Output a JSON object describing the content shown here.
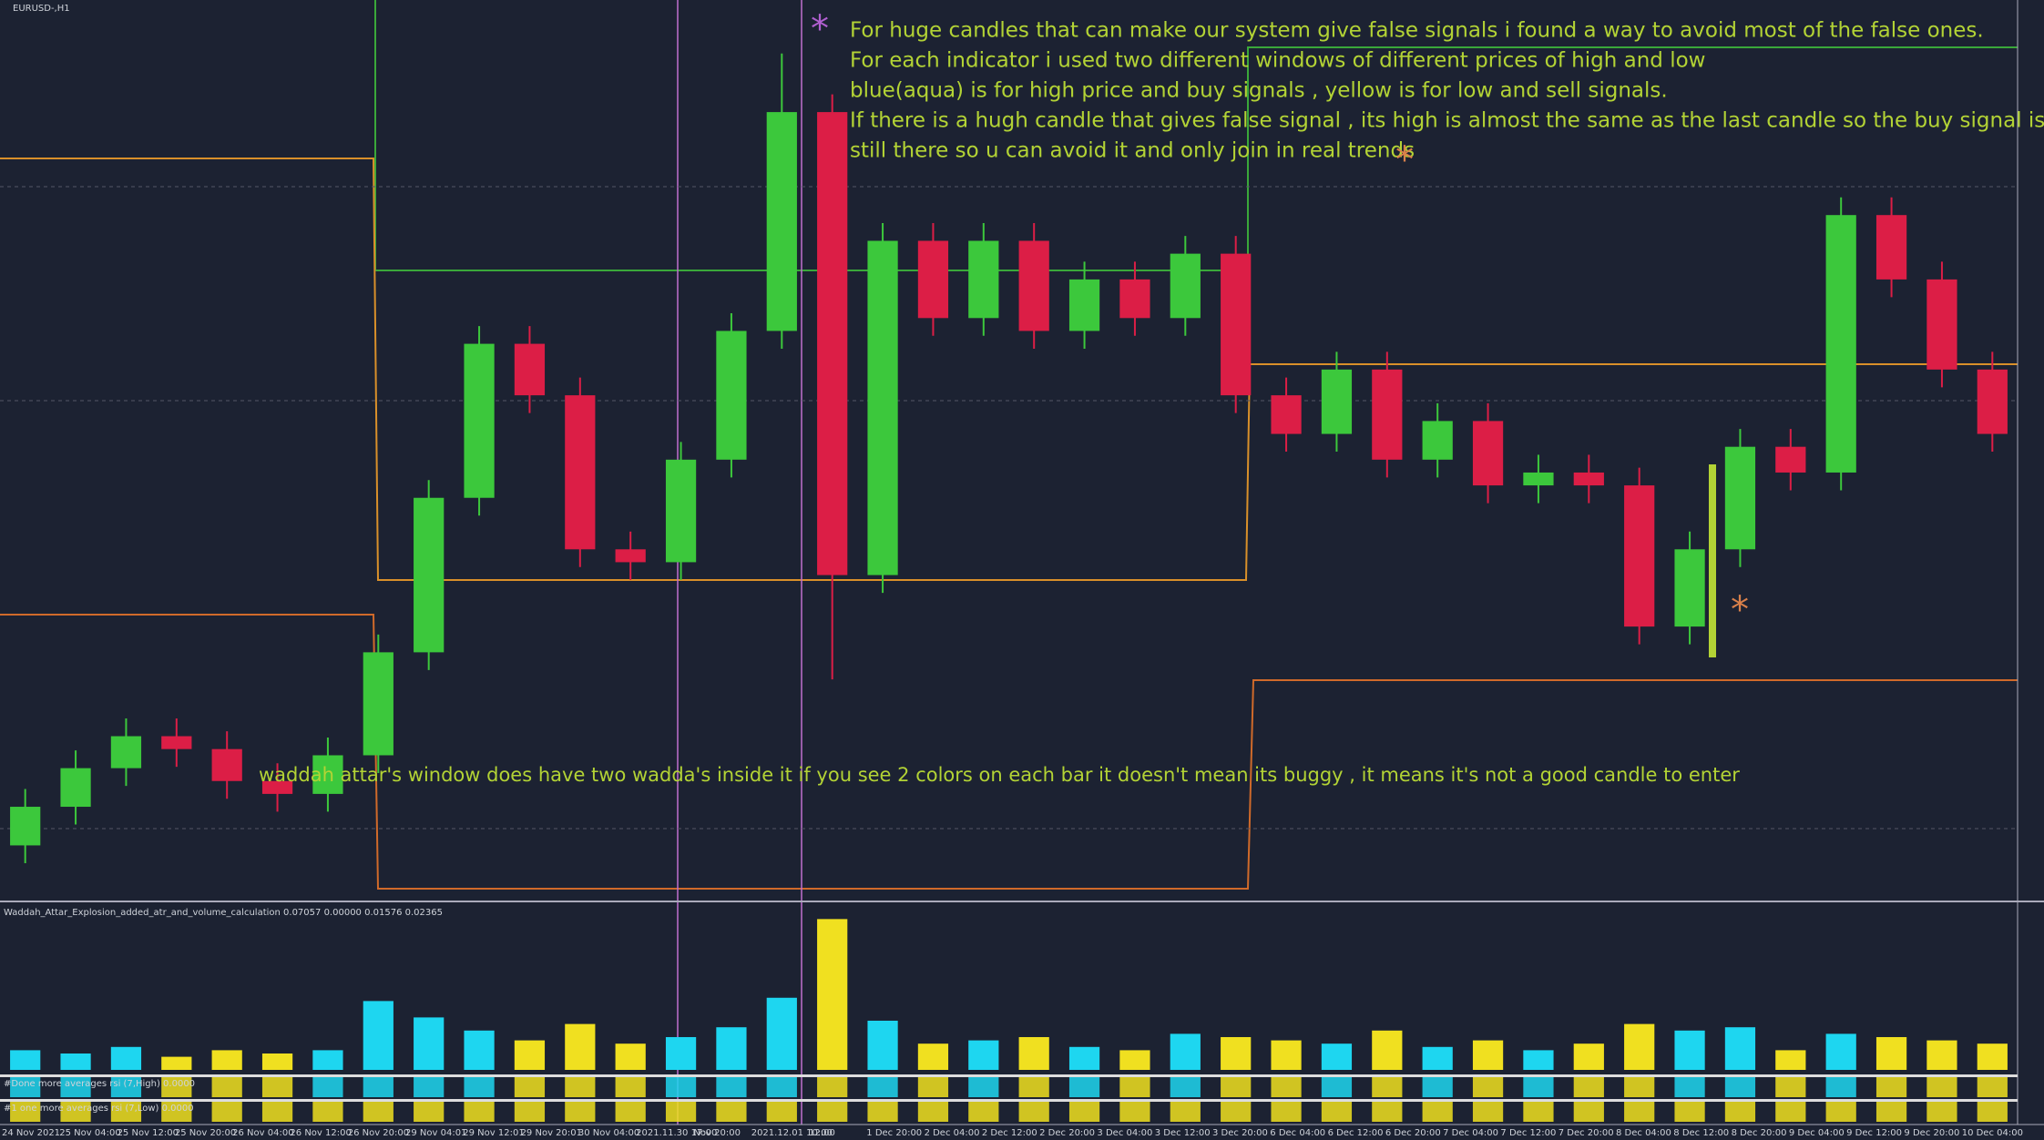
{
  "symbol_label": "EURUSD-,H1",
  "annotations": {
    "asterisk_1": "*",
    "note_lines": [
      "For huge candles that can make our system give false signals i found a way to avoid most of the false ones.",
      "For each indicator i  used two different windows of different prices of high and low",
      "blue(aqua) is for high price and buy signals , yellow is for low and sell signals.",
      "If there is a hugh candle that gives false signal , its high is almost the same as the last candle so the buy signal is",
      "still there so u can avoid it and only join in real trends"
    ],
    "asterisk_2": "*",
    "asterisk_3": "*",
    "waddah_note": "waddah attar's window does have two wadda's inside it if you see 2 colors on each bar it doesn't mean its buggy , it means it's not a good candle to enter"
  },
  "indicator_labels": [
    "Waddah_Attar_Explosion_added_atr_and_volume_calculation 0.07057 0.00000 0.01576 0.02365",
    "#Done more averages rsi (7,High) 0.0000",
    "#1 one more averages rsi (7,Low) 0.0000"
  ],
  "time_labels": [
    "24 Nov 2021",
    "25 Nov 04:00",
    "25 Nov 12:00",
    "25 Nov 20:00",
    "26 Nov 04:00",
    "26 Nov 12:00",
    "26 Nov 20:00",
    "29 Nov 04:01",
    "29 Nov 12:01",
    "29 Nov 20:01",
    "30 Nov 04:00",
    "2021.11.30 17:00",
    "Nov 20:00",
    "2021.12.01 10:00",
    "12:00",
    "1 Dec 20:00",
    "2 Dec 04:00",
    "2 Dec 12:00",
    "2 Dec 20:00",
    "3 Dec 04:00",
    "3 Dec 12:00",
    "3 Dec 20:00",
    "6 Dec 04:00",
    "6 Dec 12:00",
    "6 Dec 20:00",
    "7 Dec 04:00",
    "7 Dec 12:00",
    "7 Dec 20:00",
    "8 Dec 04:00",
    "8 Dec 12:00",
    "8 Dec 20:00",
    "9 Dec 04:00",
    "9 Dec 12:00",
    "9 Dec 20:00",
    "10 Dec 04:00"
  ],
  "price_chart": {
    "type": "candlestick",
    "up_color": "#3cc83c",
    "down_color": "#dc1e46",
    "ylim": [
      1.1185,
      1.1385
    ],
    "open": [
      1.11966,
      1.12053,
      1.1214,
      1.12212,
      1.12183,
      1.12111,
      1.12082,
      1.12169,
      1.12401,
      1.12749,
      1.13096,
      1.1298,
      1.12633,
      1.12604,
      1.12835,
      1.13125,
      1.13618,
      1.12575,
      1.13328,
      1.13154,
      1.13328,
      1.13125,
      1.13241,
      1.13154,
      1.13299,
      1.1298,
      1.12893,
      1.13038,
      1.12835,
      1.12922,
      1.12777,
      1.12806,
      1.12777,
      1.12459,
      1.12633,
      1.12864,
      1.12806,
      1.13386,
      1.13241,
      1.13038
    ],
    "high": [
      1.12093,
      1.1218,
      1.12252,
      1.12252,
      1.12223,
      1.12151,
      1.12209,
      1.12441,
      1.12789,
      1.13136,
      1.13136,
      1.1302,
      1.12673,
      1.12875,
      1.13165,
      1.1375,
      1.13658,
      1.13368,
      1.13368,
      1.13368,
      1.13368,
      1.13281,
      1.13281,
      1.13339,
      1.13339,
      1.1302,
      1.13078,
      1.13078,
      1.12962,
      1.12962,
      1.12846,
      1.12846,
      1.12817,
      1.12673,
      1.12904,
      1.12904,
      1.13426,
      1.13426,
      1.13281,
      1.13078
    ],
    "low": [
      1.11926,
      1.12013,
      1.121,
      1.12143,
      1.12071,
      1.12042,
      1.12042,
      1.12129,
      1.12361,
      1.12709,
      1.1294,
      1.12593,
      1.12564,
      1.12564,
      1.12795,
      1.13085,
      1.1234,
      1.12535,
      1.13114,
      1.13114,
      1.13085,
      1.13085,
      1.13114,
      1.13114,
      1.1294,
      1.12853,
      1.12853,
      1.12795,
      1.12795,
      1.12737,
      1.12737,
      1.12737,
      1.12419,
      1.12419,
      1.12593,
      1.12766,
      1.12766,
      1.13201,
      1.12998,
      1.12853
    ],
    "close": [
      1.12053,
      1.1214,
      1.12212,
      1.12183,
      1.12111,
      1.12082,
      1.12169,
      1.12401,
      1.12749,
      1.13096,
      1.1298,
      1.12633,
      1.12604,
      1.12835,
      1.13125,
      1.13618,
      1.12575,
      1.13328,
      1.13154,
      1.13328,
      1.13125,
      1.13241,
      1.13154,
      1.13299,
      1.1298,
      1.12893,
      1.13038,
      1.12835,
      1.12922,
      1.12777,
      1.12806,
      1.12777,
      1.12459,
      1.12633,
      1.12864,
      1.12806,
      1.13386,
      1.13241,
      1.13038,
      1.12893
    ]
  },
  "waddah_panel": {
    "type": "bar",
    "up_color": "#1ed6f0",
    "down_color": "#f0e020",
    "ylim": [
      0,
      0.0486
    ],
    "values": [
      0.006,
      0.005,
      0.007,
      0.004,
      0.006,
      0.005,
      0.006,
      0.021,
      0.016,
      0.012,
      0.009,
      0.014,
      0.008,
      0.01,
      0.013,
      0.022,
      0.046,
      0.015,
      0.008,
      0.009,
      0.01,
      0.007,
      0.006,
      0.011,
      0.01,
      0.009,
      0.008,
      0.012,
      0.007,
      0.009,
      0.006,
      0.008,
      0.014,
      0.012,
      0.013,
      0.006,
      0.011,
      0.01,
      0.009,
      0.008
    ]
  }
}
